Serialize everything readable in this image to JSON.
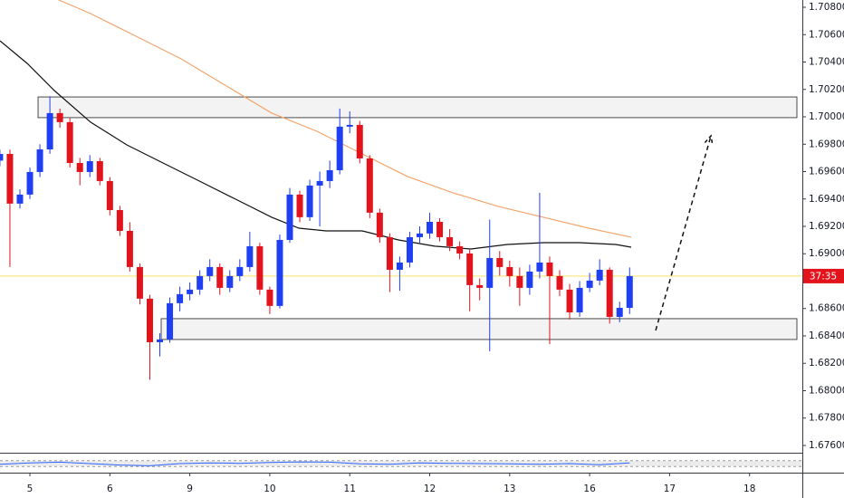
{
  "chart_data": {
    "type": "candlestick",
    "x": [
      -0.375,
      -0.25,
      -0.125,
      0,
      0.125,
      0.25,
      0.375,
      0.5,
      0.625,
      0.75,
      0.875,
      1,
      1.125,
      1.25,
      1.375,
      1.5,
      1.625,
      1.75,
      1.875,
      2,
      2.125,
      2.25,
      2.375,
      2.5,
      2.625,
      2.75,
      2.875,
      3,
      3.125,
      3.25,
      3.375,
      3.5,
      3.625,
      3.75,
      3.875,
      4,
      4.125,
      4.25,
      4.375,
      4.5,
      4.625,
      4.75,
      4.875,
      5,
      5.125,
      5.25,
      5.375,
      5.5,
      5.625,
      5.75,
      5.875,
      6,
      6.125,
      6.25,
      6.375,
      6.5,
      6.625,
      6.75,
      6.875,
      7,
      7.125,
      7.25,
      7.375,
      7.5
    ],
    "open": [
      1.6968,
      1.69729,
      1.69366,
      1.69432,
      1.69597,
      1.69762,
      1.70027,
      1.69961,
      1.69663,
      1.69597,
      1.69676,
      1.69531,
      1.69319,
      1.69167,
      1.68903,
      1.68672,
      1.68354,
      1.68374,
      1.68639,
      1.68705,
      1.68738,
      1.68837,
      1.68903,
      1.68751,
      1.68837,
      1.68903,
      1.69055,
      1.68738,
      1.68619,
      1.69101,
      1.69432,
      1.69267,
      1.69498,
      1.69531,
      1.6961,
      1.69928,
      1.69941,
      1.69696,
      1.693,
      1.69121,
      1.68883,
      1.68936,
      1.69121,
      1.69148,
      1.69233,
      1.69121,
      1.69055,
      1.69002,
      1.68771,
      1.68751,
      1.68969,
      1.68903,
      1.68837,
      1.68751,
      1.6887,
      1.68936,
      1.68837,
      1.68738,
      1.68572,
      1.68751,
      1.68804,
      1.68883,
      1.68539,
      1.68605
    ],
    "high": [
      1.6976,
      1.6976,
      1.6947,
      1.6963,
      1.698,
      1.7015,
      1.7006,
      1.6999,
      1.697,
      1.6972,
      1.697,
      1.6956,
      1.6935,
      1.6923,
      1.6893,
      1.687,
      1.6842,
      1.6868,
      1.6876,
      1.6879,
      1.6888,
      1.6896,
      1.6893,
      1.6888,
      1.6896,
      1.6916,
      1.6908,
      1.6876,
      1.6914,
      1.6948,
      1.6946,
      1.6954,
      1.696,
      1.6968,
      1.7006,
      1.7004,
      1.6997,
      1.6972,
      1.6933,
      1.6915,
      1.6898,
      1.6916,
      1.692,
      1.693,
      1.6926,
      1.6918,
      1.6909,
      1.6903,
      1.6882,
      1.6925,
      1.6902,
      1.6895,
      1.689,
      1.6892,
      1.69445,
      1.6898,
      1.6888,
      1.6878,
      1.688,
      1.6886,
      1.6896,
      1.689,
      1.6865,
      1.689
    ],
    "low": [
      1.6964,
      1.68903,
      1.6933,
      1.694,
      1.6956,
      1.6973,
      1.6992,
      1.6963,
      1.695,
      1.6956,
      1.695,
      1.6928,
      1.6913,
      1.6887,
      1.6863,
      1.6808,
      1.6825,
      1.6835,
      1.6858,
      1.6866,
      1.687,
      1.688,
      1.687,
      1.6872,
      1.688,
      1.6887,
      1.687,
      1.6856,
      1.686,
      1.6908,
      1.6923,
      1.6924,
      1.692,
      1.6948,
      1.6958,
      1.6988,
      1.6966,
      1.6926,
      1.6908,
      1.6872,
      1.6873,
      1.689,
      1.6908,
      1.6911,
      1.6909,
      1.6902,
      1.6896,
      1.6858,
      1.6866,
      1.68288,
      1.6884,
      1.6876,
      1.6862,
      1.687,
      1.6882,
      1.6834,
      1.6869,
      1.6852,
      1.6854,
      1.6872,
      1.6877,
      1.6849,
      1.685,
      1.6856
    ],
    "close": [
      1.69729,
      1.69366,
      1.69432,
      1.69597,
      1.69762,
      1.70027,
      1.69961,
      1.69663,
      1.69597,
      1.69676,
      1.69531,
      1.69319,
      1.69167,
      1.68903,
      1.68672,
      1.68354,
      1.68374,
      1.68639,
      1.68705,
      1.68738,
      1.68837,
      1.68903,
      1.68751,
      1.68837,
      1.68903,
      1.69055,
      1.68738,
      1.68619,
      1.69101,
      1.69432,
      1.69267,
      1.69498,
      1.69531,
      1.6961,
      1.69928,
      1.69941,
      1.69696,
      1.693,
      1.69121,
      1.68883,
      1.68936,
      1.69121,
      1.69148,
      1.69233,
      1.69121,
      1.69055,
      1.69002,
      1.68771,
      1.68751,
      1.68969,
      1.68903,
      1.68837,
      1.68751,
      1.6887,
      1.68936,
      1.68837,
      1.68738,
      1.68572,
      1.68751,
      1.68804,
      1.68883,
      1.68539,
      1.68605,
      1.68837
    ],
    "up_color": "#1f3ff2",
    "down_color": "#e3131c",
    "last_price_color": "#f5e36b",
    "last_price_label": "37:35",
    "xlim": [
      -0.374,
      9.66
    ],
    "xticks": [
      {
        "value": 0,
        "label": "5"
      },
      {
        "value": 1,
        "label": "6"
      },
      {
        "value": 2,
        "label": "9"
      },
      {
        "value": 3,
        "label": "10"
      },
      {
        "value": 4,
        "label": "11"
      },
      {
        "value": 5,
        "label": "12"
      },
      {
        "value": 6,
        "label": "13"
      },
      {
        "value": 7,
        "label": "16"
      },
      {
        "value": 8,
        "label": "17"
      },
      {
        "value": 9,
        "label": "18"
      }
    ],
    "ylim": [
      1.67547,
      1.70853
    ],
    "yticks": [
      {
        "value": 1.708,
        "label": "1.70800"
      },
      {
        "value": 1.706,
        "label": "1.70600"
      },
      {
        "value": 1.704,
        "label": "1.70400"
      },
      {
        "value": 1.702,
        "label": "1.70200"
      },
      {
        "value": 1.7,
        "label": "1.70000"
      },
      {
        "value": 1.698,
        "label": "1.69800"
      },
      {
        "value": 1.696,
        "label": "1.69600"
      },
      {
        "value": 1.694,
        "label": "1.69400"
      },
      {
        "value": 1.692,
        "label": "1.69200"
      },
      {
        "value": 1.69,
        "label": "1.69000"
      },
      {
        "value": 1.686,
        "label": "1.68600"
      },
      {
        "value": 1.684,
        "label": "1.68400"
      },
      {
        "value": 1.682,
        "label": "1.68200"
      },
      {
        "value": 1.68,
        "label": "1.68000"
      },
      {
        "value": 1.678,
        "label": "1.67800"
      },
      {
        "value": 1.676,
        "label": "1.67600"
      }
    ],
    "overlays": [
      {
        "color": "#111111",
        "x": [
          -0.374,
          -0.034,
          0.306,
          0.759,
          1.212,
          1.665,
          2.118,
          2.571,
          3.024,
          3.364,
          3.703,
          4.156,
          4.609,
          5.062,
          5.515,
          5.968,
          6.421,
          6.874,
          7.327,
          7.52
        ],
        "values": [
          1.70555,
          1.7039,
          1.70192,
          1.69961,
          1.69795,
          1.69663,
          1.69531,
          1.69399,
          1.69267,
          1.69187,
          1.69167,
          1.69167,
          1.69101,
          1.69055,
          1.69035,
          1.69068,
          1.69081,
          1.69081,
          1.69068,
          1.69048
        ]
      },
      {
        "color": "#f4a46a",
        "x": [
          0.362,
          0.759,
          1.325,
          1.891,
          2.458,
          3.024,
          3.59,
          4.156,
          4.722,
          5.289,
          5.855,
          6.421,
          6.987,
          7.52
        ],
        "values": [
          1.70853,
          1.70754,
          1.70589,
          1.70423,
          1.70225,
          1.70027,
          1.69894,
          1.69729,
          1.69564,
          1.69445,
          1.69346,
          1.69267,
          1.69187,
          1.69121
        ]
      }
    ],
    "zones": [
      {
        "x": [
          0.102,
          9.592
        ],
        "y": [
          1.70145,
          1.69994
        ]
      },
      {
        "x": [
          1.642,
          9.592
        ],
        "y": [
          1.68526,
          1.68374
        ]
      }
    ],
    "arrow": {
      "x": [
        7.826,
        8.517
      ],
      "y": [
        1.6844,
        1.69861
      ]
    },
    "indicator": {
      "color": "#2962ff",
      "ylim": [
        0,
        100
      ],
      "band": [
        30,
        70
      ],
      "x": [
        -0.375,
        0,
        0.375,
        0.75,
        1.125,
        1.5,
        1.875,
        2.25,
        2.625,
        3,
        3.375,
        3.75,
        4.125,
        4.5,
        4.875,
        5.25,
        5.625,
        6,
        6.375,
        6.75,
        7.125,
        7.5
      ],
      "values": [
        45,
        55,
        60,
        50,
        40,
        35,
        50,
        55,
        52,
        58,
        62,
        60,
        48,
        45,
        55,
        52,
        50,
        48,
        45,
        50,
        42,
        55
      ]
    }
  }
}
